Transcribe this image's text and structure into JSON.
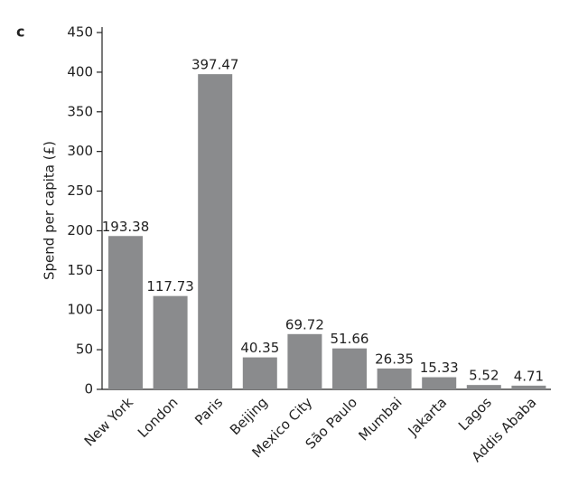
{
  "panel_label": "c",
  "chart_data": {
    "type": "bar",
    "y_label": "Spend per capita (£)",
    "categories": [
      "New York",
      "London",
      "Paris",
      "Beijing",
      "Mexico City",
      "São Paulo",
      "Mumbai",
      "Jakarta",
      "Lagos",
      "Addis Ababa"
    ],
    "values": [
      193.38,
      117.73,
      397.47,
      40.35,
      69.72,
      51.66,
      26.35,
      15.33,
      5.52,
      4.71
    ],
    "color": "#8a8b8d",
    "ylim": [
      0,
      450
    ],
    "yticks": [
      0,
      50,
      100,
      150,
      200,
      250,
      300,
      350,
      400,
      450
    ]
  }
}
